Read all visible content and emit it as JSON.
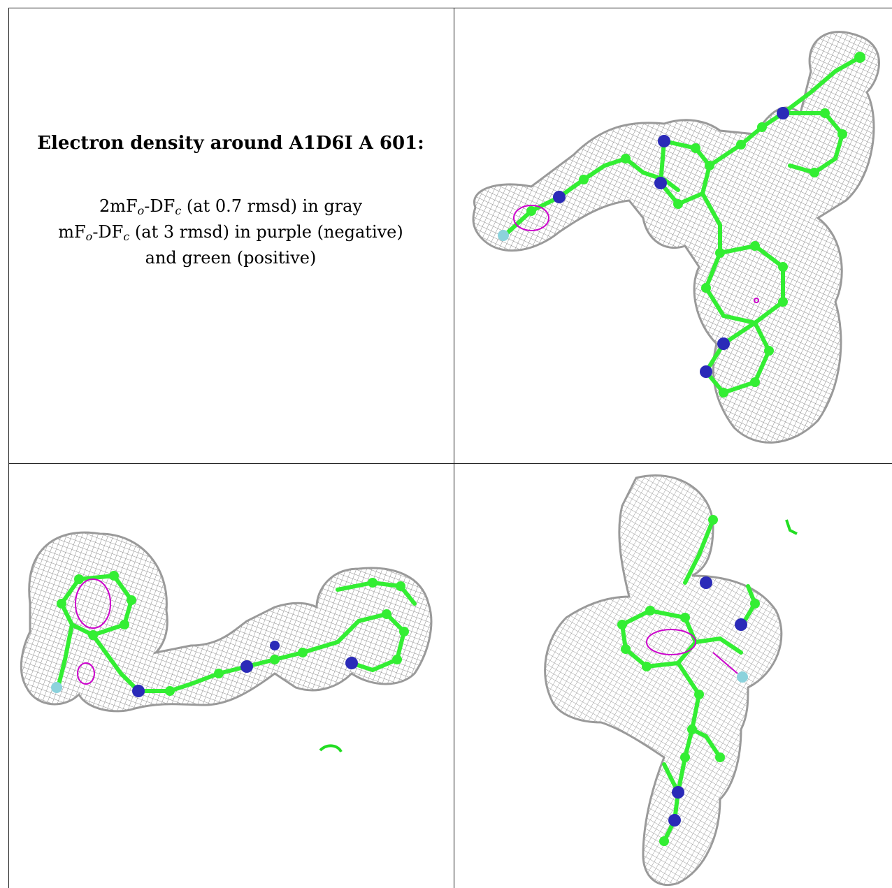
{
  "caption": {
    "title": "Electron density around A1D6I A 601:",
    "line1_a": "2mF",
    "line1_sub1": "o",
    "line1_b": "-DF",
    "line1_sub2": "c",
    "line1_c": " (at 0.7 rmsd) in gray",
    "line2_a": "mF",
    "line2_sub1": "o",
    "line2_b": "-DF",
    "line2_sub2": "c",
    "line2_c": " (at 3 rmsd) in purple (negative)",
    "line3": "and green (positive)"
  },
  "colors": {
    "mesh": "#8c8c8c",
    "carbon": "#33ee33",
    "nitrogen": "#2a2ab8",
    "fluorine": "#8cd2dc",
    "negative_density": "#cc00cc",
    "positive_density": "#22dd22"
  },
  "panels": [
    "view-top-right",
    "view-bottom-left",
    "view-bottom-right"
  ]
}
